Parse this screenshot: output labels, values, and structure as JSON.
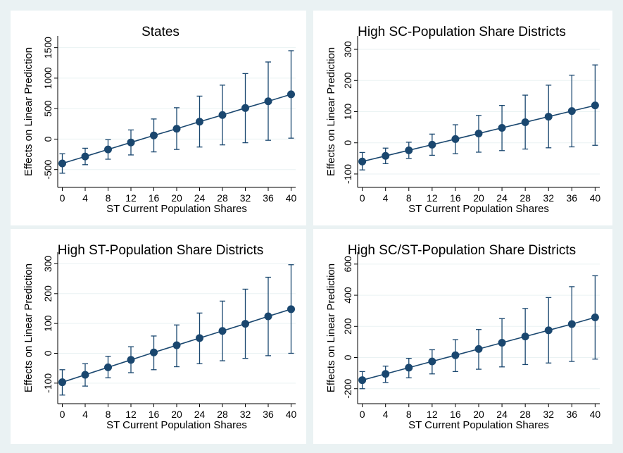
{
  "colors": {
    "series": "#1a476f",
    "grid": "#eaf2f3",
    "figure_bg": "#eaf2f3",
    "plot_bg": "#ffffff"
  },
  "chart_data": [
    {
      "type": "line",
      "title": "States",
      "xlabel": "ST Current Population Shares",
      "ylabel": "Effects on Linear Prediction",
      "x": [
        0,
        4,
        8,
        12,
        16,
        20,
        24,
        28,
        32,
        36,
        40
      ],
      "xticks": [
        0,
        4,
        8,
        12,
        16,
        20,
        24,
        28,
        32,
        36,
        40
      ],
      "yticks": [
        -500,
        0,
        500,
        1000,
        1500
      ],
      "ylim": [
        -700,
        1600
      ],
      "grid": true,
      "series": [
        {
          "values": [
            -400,
            -285,
            -170,
            -55,
            60,
            170,
            285,
            395,
            510,
            620,
            735
          ],
          "ci_low": [
            -560,
            -420,
            -330,
            -260,
            -210,
            -170,
            -130,
            -95,
            -60,
            -20,
            15
          ],
          "ci_high": [
            -240,
            -150,
            -10,
            150,
            330,
            515,
            705,
            885,
            1075,
            1265,
            1450
          ]
        }
      ]
    },
    {
      "type": "line",
      "title": "High SC-Population Share Districts",
      "xlabel": "ST Current Population Shares",
      "ylabel": "Effects on Linear Prediction",
      "x": [
        0,
        4,
        8,
        12,
        16,
        20,
        24,
        28,
        32,
        36,
        40
      ],
      "xticks": [
        0,
        4,
        8,
        12,
        16,
        20,
        24,
        28,
        32,
        36,
        40
      ],
      "yticks": [
        -100,
        0,
        100,
        200,
        300
      ],
      "ylim": [
        -125,
        325
      ],
      "grid": true,
      "series": [
        {
          "values": [
            -60,
            -42,
            -24,
            -6,
            12,
            30,
            48,
            66,
            84,
            102,
            120
          ],
          "ci_low": [
            -87,
            -67,
            -50,
            -40,
            -35,
            -30,
            -25,
            -20,
            -16,
            -13,
            -8
          ],
          "ci_high": [
            -31,
            -17,
            2,
            28,
            58,
            88,
            120,
            153,
            185,
            217,
            250
          ]
        }
      ]
    },
    {
      "type": "line",
      "title": "High ST-Population Share Districts",
      "xlabel": "ST Current Population Shares",
      "ylabel": "Effects on Linear Prediction",
      "x": [
        0,
        4,
        8,
        12,
        16,
        20,
        24,
        28,
        32,
        36,
        40
      ],
      "xticks": [
        0,
        4,
        8,
        12,
        16,
        20,
        24,
        28,
        32,
        36,
        40
      ],
      "yticks": [
        -100,
        0,
        100,
        200,
        300
      ],
      "ylim": [
        -150,
        320
      ],
      "grid": true,
      "series": [
        {
          "values": [
            -97,
            -72,
            -47,
            -22,
            3,
            27,
            51,
            75,
            99,
            124,
            148
          ],
          "ci_low": [
            -140,
            -110,
            -82,
            -65,
            -55,
            -45,
            -35,
            -25,
            -17,
            -8,
            0
          ],
          "ci_high": [
            -55,
            -35,
            -10,
            22,
            58,
            95,
            135,
            175,
            215,
            255,
            297
          ]
        }
      ]
    },
    {
      "type": "line",
      "title": "High SC/ST-Population Share Districts",
      "xlabel": "ST Current Population Shares",
      "ylabel": "Effects on Linear Prediction",
      "x": [
        0,
        4,
        8,
        12,
        16,
        20,
        24,
        28,
        32,
        36,
        40
      ],
      "xticks": [
        0,
        4,
        8,
        12,
        16,
        20,
        24,
        28,
        32,
        36,
        40
      ],
      "yticks": [
        -200,
        0,
        200,
        400,
        600
      ],
      "ylim": [
        -260,
        640
      ],
      "grid": true,
      "series": [
        {
          "values": [
            -145,
            -105,
            -65,
            -25,
            15,
            55,
            95,
            135,
            175,
            215,
            258
          ],
          "ci_low": [
            -200,
            -160,
            -130,
            -105,
            -90,
            -75,
            -60,
            -45,
            -35,
            -25,
            -10
          ],
          "ci_high": [
            -90,
            -55,
            -5,
            50,
            115,
            180,
            250,
            315,
            385,
            455,
            525
          ]
        }
      ]
    }
  ]
}
